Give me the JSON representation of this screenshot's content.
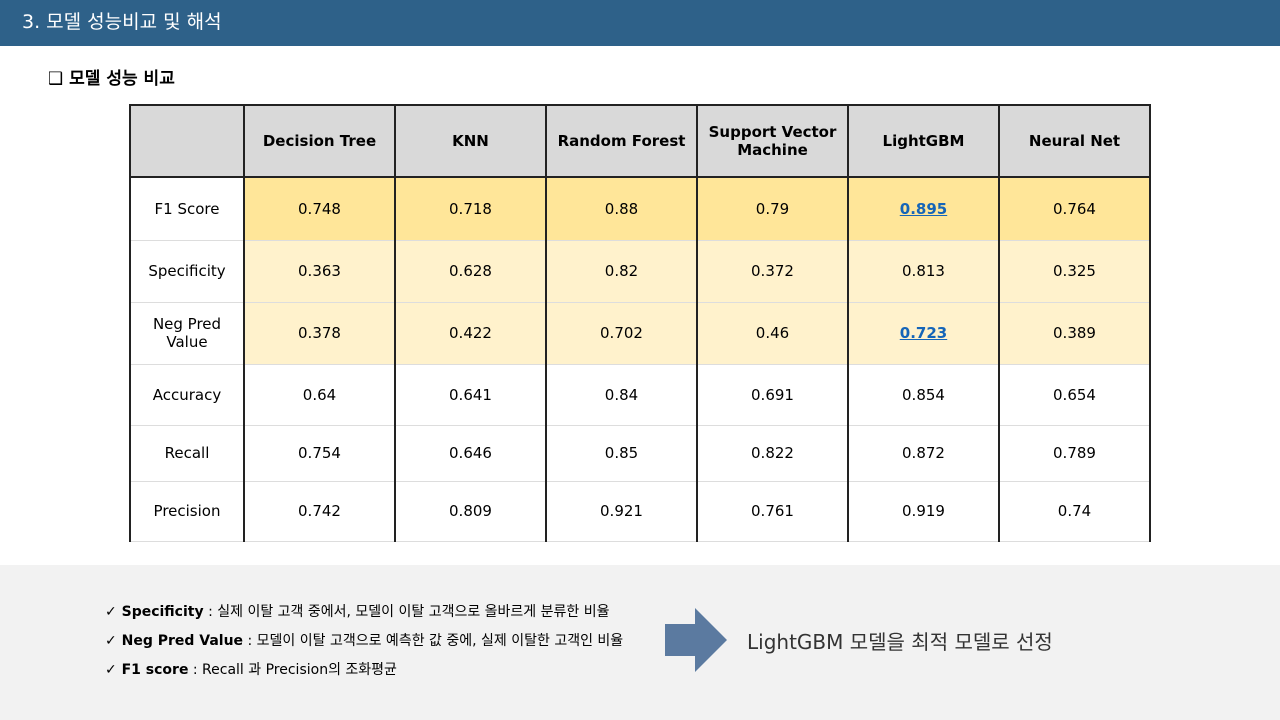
{
  "header": {
    "title": "3. 모델 성능비교 및 해석"
  },
  "section_title": "❑ 모델 성능 비교",
  "table": {
    "header_fill": "#d9d9d9",
    "columns": [
      "Decision Tree",
      "KNN",
      "Random Forest",
      "Support Vector Machine",
      "LightGBM",
      "Neural Net"
    ],
    "rows": [
      {
        "label": "F1 Score",
        "values": [
          0.748,
          0.718,
          0.88,
          0.79,
          0.895,
          0.764
        ],
        "fill": "#ffe699",
        "emphasized": true
      },
      {
        "label": "Specificity",
        "values": [
          0.363,
          0.628,
          0.82,
          0.372,
          0.813,
          0.325
        ],
        "fill": "#fff2cc",
        "emphasized": true
      },
      {
        "label": "Neg Pred Value",
        "values": [
          0.378,
          0.422,
          0.702,
          0.46,
          0.723,
          0.389
        ],
        "fill": "#fff2cc",
        "emphasized": true
      },
      {
        "label": "Accuracy",
        "values": [
          0.64,
          0.641,
          0.84,
          0.691,
          0.854,
          0.654
        ],
        "fill": "#ffffff",
        "emphasized": false
      },
      {
        "label": "Recall",
        "values": [
          0.754,
          0.646,
          0.85,
          0.822,
          0.872,
          0.789
        ],
        "fill": "#ffffff",
        "emphasized": false
      },
      {
        "label": "Precision",
        "values": [
          0.742,
          0.809,
          0.921,
          0.761,
          0.919,
          0.74
        ],
        "fill": "#ffffff",
        "emphasized": false
      }
    ]
  },
  "notes": [
    {
      "term": "✓ Specificity",
      "desc": ": 실제 이탈 고객 중에서, 모델이 이탈 고객으로 올바르게 분류한 비율"
    },
    {
      "term": "✓ Neg Pred Value",
      "desc": ": 모델이 이탈 고객으로 예측한 값 중에, 실제 이탈한 고객인 비율"
    },
    {
      "term": "✓ F1 score",
      "desc": ": Recall 과 Precision의 조화평균"
    }
  ],
  "conclusion": "LightGBM 모델을 최적 모델로 선정"
}
